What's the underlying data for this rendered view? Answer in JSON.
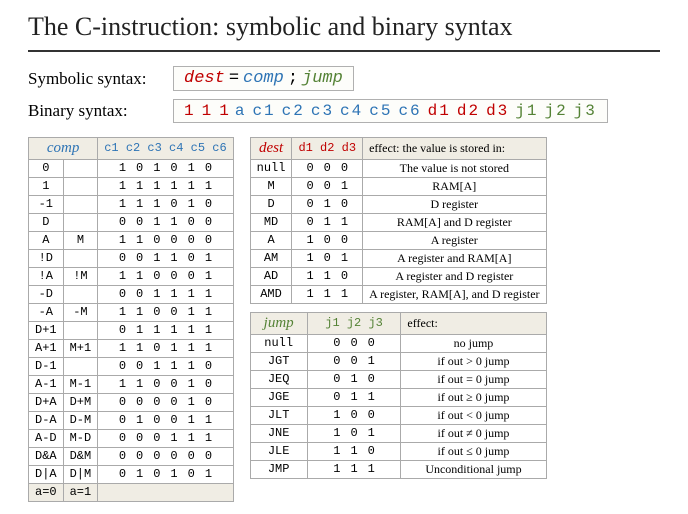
{
  "title": "The C-instruction: symbolic and binary syntax",
  "sym_label": "Symbolic syntax:",
  "bin_label": "Binary syntax:",
  "sym_parts": {
    "dest": "dest",
    "eq": "=",
    "comp": "comp",
    "semi": ";",
    "jump": "jump"
  },
  "bin_prefix": [
    "1",
    "1",
    "1"
  ],
  "bin_rest": [
    {
      "t": "a",
      "c": "#2e74b5"
    },
    {
      "t": "c1",
      "c": "#2e74b5"
    },
    {
      "t": "c2",
      "c": "#2e74b5"
    },
    {
      "t": "c3",
      "c": "#2e74b5"
    },
    {
      "t": "c4",
      "c": "#2e74b5"
    },
    {
      "t": "c5",
      "c": "#2e74b5"
    },
    {
      "t": "c6",
      "c": "#2e74b5"
    },
    {
      "t": "d1",
      "c": "#c00000"
    },
    {
      "t": "d2",
      "c": "#c00000"
    },
    {
      "t": "d3",
      "c": "#c00000"
    },
    {
      "t": "j1",
      "c": "#548235"
    },
    {
      "t": "j2",
      "c": "#548235"
    },
    {
      "t": "j3",
      "c": "#548235"
    }
  ],
  "colors": {
    "dest": "#c00000",
    "comp": "#2e74b5",
    "jump": "#548235",
    "eq": "#000"
  },
  "comp_header": {
    "comp": "comp",
    "bits": "c1 c2 c3 c4 c5 c6"
  },
  "comp_rows": [
    {
      "a0": "0",
      "a1": "",
      "b": [
        "1",
        "0",
        "1",
        "0",
        "1",
        "0"
      ]
    },
    {
      "a0": "1",
      "a1": "",
      "b": [
        "1",
        "1",
        "1",
        "1",
        "1",
        "1"
      ]
    },
    {
      "a0": "-1",
      "a1": "",
      "b": [
        "1",
        "1",
        "1",
        "0",
        "1",
        "0"
      ]
    },
    {
      "a0": "D",
      "a1": "",
      "b": [
        "0",
        "0",
        "1",
        "1",
        "0",
        "0"
      ]
    },
    {
      "a0": "A",
      "a1": "M",
      "b": [
        "1",
        "1",
        "0",
        "0",
        "0",
        "0"
      ]
    },
    {
      "a0": "!D",
      "a1": "",
      "b": [
        "0",
        "0",
        "1",
        "1",
        "0",
        "1"
      ]
    },
    {
      "a0": "!A",
      "a1": "!M",
      "b": [
        "1",
        "1",
        "0",
        "0",
        "0",
        "1"
      ]
    },
    {
      "a0": "-D",
      "a1": "",
      "b": [
        "0",
        "0",
        "1",
        "1",
        "1",
        "1"
      ]
    },
    {
      "a0": "-A",
      "a1": "-M",
      "b": [
        "1",
        "1",
        "0",
        "0",
        "1",
        "1"
      ]
    },
    {
      "a0": "D+1",
      "a1": "",
      "b": [
        "0",
        "1",
        "1",
        "1",
        "1",
        "1"
      ]
    },
    {
      "a0": "A+1",
      "a1": "M+1",
      "b": [
        "1",
        "1",
        "0",
        "1",
        "1",
        "1"
      ]
    },
    {
      "a0": "D-1",
      "a1": "",
      "b": [
        "0",
        "0",
        "1",
        "1",
        "1",
        "0"
      ]
    },
    {
      "a0": "A-1",
      "a1": "M-1",
      "b": [
        "1",
        "1",
        "0",
        "0",
        "1",
        "0"
      ]
    },
    {
      "a0": "D+A",
      "a1": "D+M",
      "b": [
        "0",
        "0",
        "0",
        "0",
        "1",
        "0"
      ]
    },
    {
      "a0": "D-A",
      "a1": "D-M",
      "b": [
        "0",
        "1",
        "0",
        "0",
        "1",
        "1"
      ]
    },
    {
      "a0": "A-D",
      "a1": "M-D",
      "b": [
        "0",
        "0",
        "0",
        "1",
        "1",
        "1"
      ]
    },
    {
      "a0": "D&A",
      "a1": "D&M",
      "b": [
        "0",
        "0",
        "0",
        "0",
        "0",
        "0"
      ]
    },
    {
      "a0": "D|A",
      "a1": "D|M",
      "b": [
        "0",
        "1",
        "0",
        "1",
        "0",
        "1"
      ]
    }
  ],
  "comp_footer": {
    "a0": "a=0",
    "a1": "a=1"
  },
  "dest_header": {
    "dest": "dest",
    "bits": "d1 d2 d3",
    "effect": "effect: the value is stored in:"
  },
  "dest_rows": [
    {
      "m": "null",
      "b": [
        "0",
        "0",
        "0"
      ],
      "e": "The value is not stored"
    },
    {
      "m": "M",
      "b": [
        "0",
        "0",
        "1"
      ],
      "e": "RAM[A]"
    },
    {
      "m": "D",
      "b": [
        "0",
        "1",
        "0"
      ],
      "e": "D register"
    },
    {
      "m": "MD",
      "b": [
        "0",
        "1",
        "1"
      ],
      "e": "RAM[A] and D register"
    },
    {
      "m": "A",
      "b": [
        "1",
        "0",
        "0"
      ],
      "e": "A register"
    },
    {
      "m": "AM",
      "b": [
        "1",
        "0",
        "1"
      ],
      "e": "A register and RAM[A]"
    },
    {
      "m": "AD",
      "b": [
        "1",
        "1",
        "0"
      ],
      "e": "A register and D register"
    },
    {
      "m": "AMD",
      "b": [
        "1",
        "1",
        "1"
      ],
      "e": "A register, RAM[A], and D register"
    }
  ],
  "jump_header": {
    "jump": "jump",
    "bits": "j1 j2 j3",
    "effect": "effect:"
  },
  "jump_rows": [
    {
      "m": "null",
      "b": [
        "0",
        "0",
        "0"
      ],
      "e": "no jump"
    },
    {
      "m": "JGT",
      "b": [
        "0",
        "0",
        "1"
      ],
      "e": "if out > 0 jump"
    },
    {
      "m": "JEQ",
      "b": [
        "0",
        "1",
        "0"
      ],
      "e": "if out = 0 jump"
    },
    {
      "m": "JGE",
      "b": [
        "0",
        "1",
        "1"
      ],
      "e": "if out ≥ 0 jump"
    },
    {
      "m": "JLT",
      "b": [
        "1",
        "0",
        "0"
      ],
      "e": "if out < 0 jump"
    },
    {
      "m": "JNE",
      "b": [
        "1",
        "0",
        "1"
      ],
      "e": "if out ≠ 0 jump"
    },
    {
      "m": "JLE",
      "b": [
        "1",
        "1",
        "0"
      ],
      "e": "if out ≤ 0 jump"
    },
    {
      "m": "JMP",
      "b": [
        "1",
        "1",
        "1"
      ],
      "e": "Unconditional jump"
    }
  ]
}
